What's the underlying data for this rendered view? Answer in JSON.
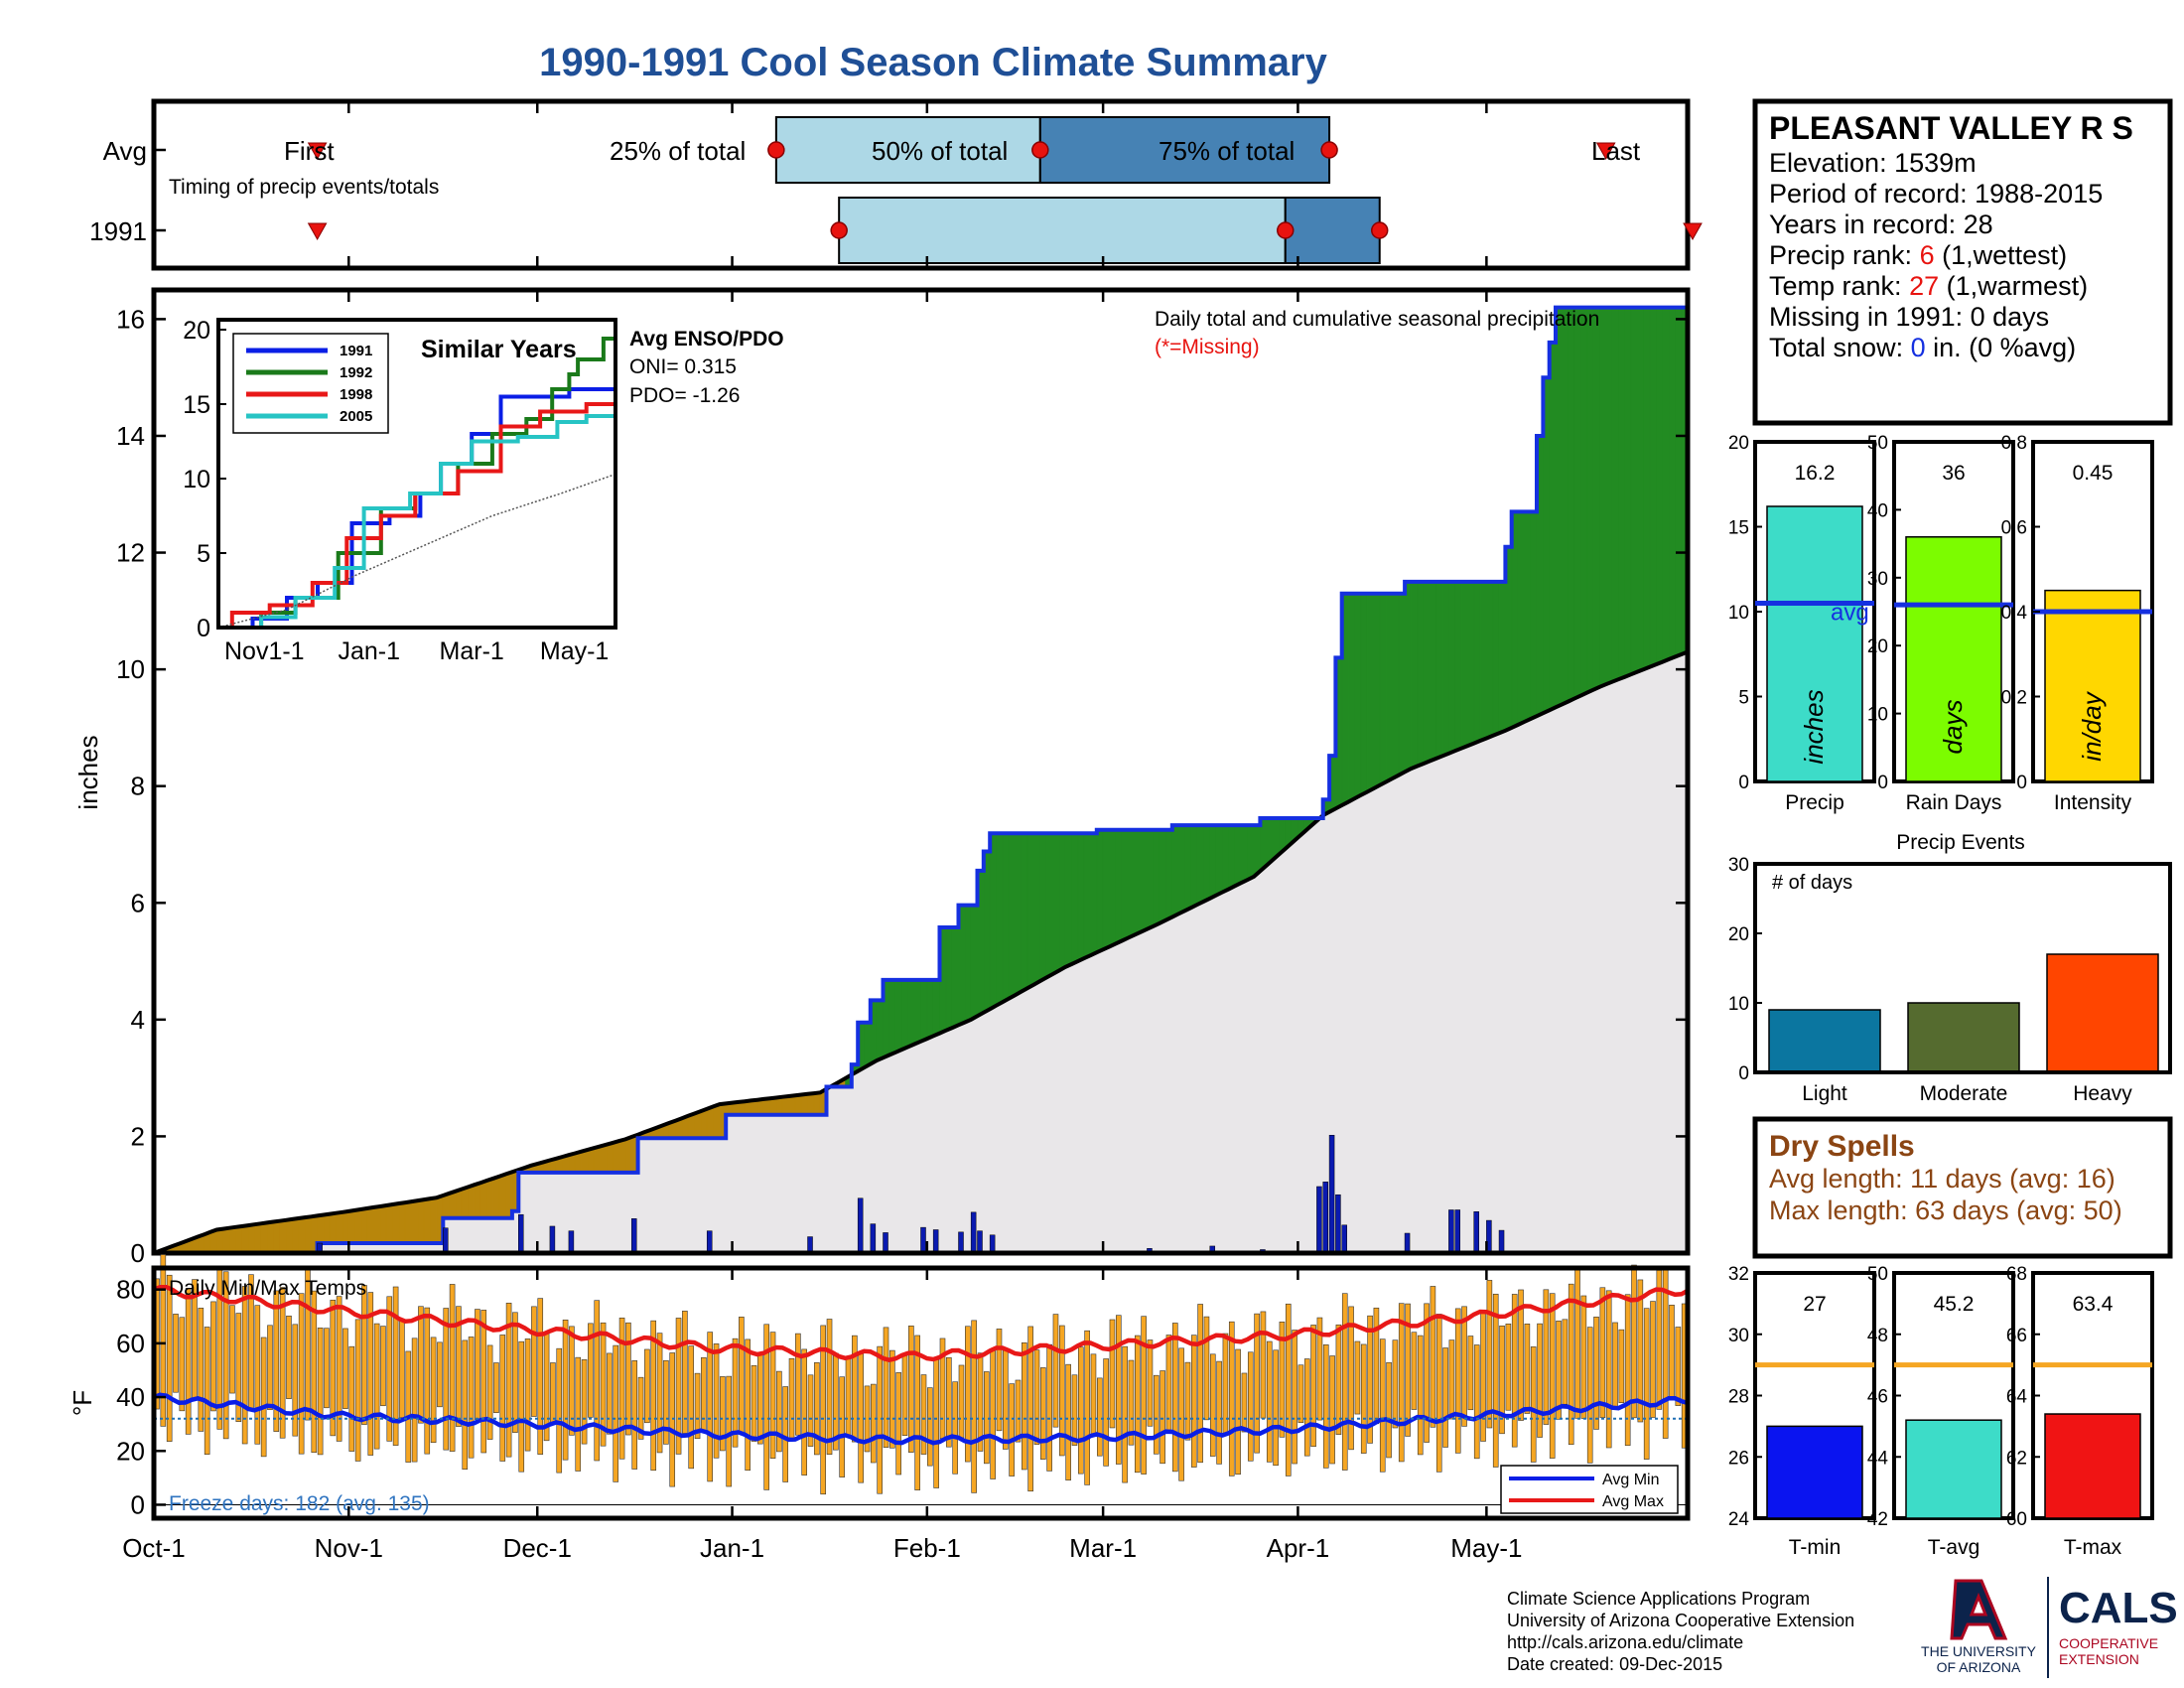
{
  "title": "1990-1991 Cool Season Climate Summary",
  "timing": {
    "row_labels": [
      "Avg",
      "1991"
    ],
    "first_label": "First",
    "last_label": "Last",
    "pct25_label": "25% of total",
    "pct50_label": "50% of total",
    "pct75_label": "75% of total",
    "caption": "Timing of precip events/totals"
  },
  "station": {
    "name": "PLEASANT VALLEY R S",
    "elevation": "Elevation: 1539m",
    "period": "Period of record: 1988-2015",
    "years": "Years in record: 28",
    "precip_rank_label": "Precip rank: ",
    "precip_rank_value": "6",
    "precip_rank_note": " (1,wettest)",
    "temp_rank_label": "Temp rank: ",
    "temp_rank_value": "27",
    "temp_rank_note": " (1,warmest)",
    "missing": "Missing in 1991: 0 days",
    "snow_label": "Total snow: ",
    "snow_value": "0",
    "snow_note": " in. (0 %avg)"
  },
  "main_chart": {
    "ylabel": "inches",
    "annotation": "Daily total and cumulative seasonal precipitation",
    "missing_note": "(*=Missing)",
    "x_ticks": [
      "Oct-1",
      "Nov-1",
      "Dec-1",
      "Jan-1",
      "Feb-1",
      "Mar-1",
      "Apr-1",
      "May-1"
    ],
    "y_ticks": [
      "0",
      "2",
      "4",
      "6",
      "8",
      "10",
      "12",
      "14",
      "16"
    ],
    "enso_title": "Avg ENSO/PDO",
    "oni": "ONI= 0.315",
    "pdo": "PDO= -1.26"
  },
  "inset": {
    "title": "Similar Years",
    "y_ticks": [
      "0",
      "5",
      "10",
      "15",
      "20"
    ],
    "x_ticks": [
      "Nov1-1",
      "Jan-1",
      "Mar-1",
      "May-1"
    ],
    "legend": [
      "1991",
      "1992",
      "1998",
      "2005"
    ]
  },
  "temps": {
    "title": "Daily Min/Max Temps",
    "ylabel": "°F",
    "y_ticks": [
      "0",
      "20",
      "40",
      "60",
      "80"
    ],
    "freeze_note": "Freeze days: 182 (avg. 135)",
    "legend_min": "Avg Min",
    "legend_max": "Avg Max"
  },
  "summary_bars": {
    "panels": [
      {
        "label": "Precip",
        "unit": "inches",
        "value_text": "16.2",
        "ticks": [
          "0",
          "5",
          "10",
          "15",
          "20"
        ],
        "avg_text": "avg"
      },
      {
        "label": "Rain Days",
        "unit": "days",
        "value_text": "36",
        "ticks": [
          "0",
          "10",
          "20",
          "30",
          "40",
          "50"
        ]
      },
      {
        "label": "Intensity",
        "unit": "in/day",
        "value_text": "0.45",
        "ticks": [
          "0",
          "0.2",
          "0.4",
          "0.6",
          "0.8"
        ]
      }
    ]
  },
  "events": {
    "title": "Precip Events",
    "ylabel": "# of days",
    "y_ticks": [
      "0",
      "10",
      "20",
      "30"
    ],
    "categories": [
      "Light",
      "Moderate",
      "Heavy"
    ]
  },
  "dry": {
    "title": "Dry Spells",
    "avg": "Avg length: 11 days (avg: 16)",
    "max": "Max length: 63 days (avg: 50)"
  },
  "temp_bars": {
    "panels": [
      {
        "label": "T-min",
        "value_text": "27",
        "ticks": [
          "24",
          "26",
          "28",
          "30",
          "32"
        ]
      },
      {
        "label": "T-avg",
        "value_text": "45.2",
        "ticks": [
          "42",
          "44",
          "46",
          "48",
          "50"
        ]
      },
      {
        "label": "T-max",
        "value_text": "63.4",
        "ticks": [
          "60",
          "62",
          "64",
          "66",
          "68"
        ]
      }
    ]
  },
  "footer": {
    "line1": "Climate Science Applications Program",
    "line2": "University of Arizona Cooperative Extension",
    "line3": "http://cals.arizona.edu/climate",
    "line4": " Date created: 09-Dec-2015",
    "ua_line1": "THE UNIVERSITY",
    "ua_line2": "OF ARIZONA",
    "cals": "CALS",
    "coop1": "COOPERATIVE",
    "coop2": "EXTENSION"
  },
  "chart_data": [
    {
      "type": "area",
      "x_days_axis": "2Oct-1 to May-31 (244 days)",
      "ylim": [
        0,
        16.5
      ],
      "ylabel": "inches",
      "series": [
        {
          "name": "1991",
          "points": [
            [
              0,
              0
            ],
            [
              25,
              0
            ],
            [
              26,
              0.17
            ],
            [
              45,
              0.17
            ],
            [
              46,
              0.6
            ],
            [
              57,
              0.72
            ],
            [
              58,
              1.38
            ],
            [
              76,
              1.38
            ],
            [
              77,
              1.97
            ],
            [
              90,
              1.97
            ],
            [
              91,
              2.37
            ],
            [
              106,
              2.37
            ],
            [
              107,
              2.85
            ],
            [
              111,
              3.23
            ],
            [
              112,
              3.95
            ],
            [
              114,
              4.33
            ],
            [
              116,
              4.68
            ],
            [
              124,
              4.68
            ],
            [
              125,
              5.58
            ],
            [
              128,
              5.96
            ],
            [
              131,
              6.55
            ],
            [
              132,
              6.88
            ],
            [
              133,
              7.19
            ],
            [
              150,
              7.25
            ],
            [
              162,
              7.33
            ],
            [
              176,
              7.45
            ],
            [
              186,
              7.77
            ],
            [
              187,
              8.52
            ],
            [
              188,
              10.2
            ],
            [
              189,
              11.3
            ],
            [
              198,
              11.3
            ],
            [
              199,
              11.5
            ],
            [
              215,
              12.1
            ],
            [
              216,
              12.7
            ],
            [
              220,
              14.0
            ],
            [
              221,
              15.0
            ],
            [
              222,
              15.6
            ],
            [
              223,
              16.2
            ],
            [
              244,
              16.2
            ]
          ]
        },
        {
          "name": "Average cumulative",
          "points": [
            [
              0,
              0
            ],
            [
              10,
              0.4
            ],
            [
              30,
              0.7
            ],
            [
              45,
              0.95
            ],
            [
              60,
              1.5
            ],
            [
              75,
              1.95
            ],
            [
              90,
              2.55
            ],
            [
              106,
              2.75
            ],
            [
              115,
              3.3
            ],
            [
              130,
              4.0
            ],
            [
              145,
              4.9
            ],
            [
              160,
              5.65
            ],
            [
              175,
              6.45
            ],
            [
              186,
              7.5
            ],
            [
              200,
              8.3
            ],
            [
              215,
              8.95
            ],
            [
              230,
              9.7
            ],
            [
              244,
              10.3
            ]
          ]
        }
      ],
      "daily_precip": [
        [
          26,
          0.17
        ],
        [
          46,
          0.43
        ],
        [
          58,
          0.66
        ],
        [
          63,
          0.46
        ],
        [
          66,
          0.38
        ],
        [
          76,
          0.59
        ],
        [
          88,
          0.38
        ],
        [
          104,
          0.28
        ],
        [
          112,
          0.94
        ],
        [
          114,
          0.5
        ],
        [
          116,
          0.35
        ],
        [
          122,
          0.44
        ],
        [
          124,
          0.4
        ],
        [
          128,
          0.36
        ],
        [
          130,
          0.7
        ],
        [
          131,
          0.38
        ],
        [
          133,
          0.31
        ],
        [
          158,
          0.08
        ],
        [
          168,
          0.12
        ],
        [
          176,
          0.06
        ],
        [
          185,
          1.14
        ],
        [
          186,
          1.22
        ],
        [
          187,
          2.02
        ],
        [
          188,
          1.0
        ],
        [
          189,
          0.48
        ],
        [
          199,
          0.34
        ],
        [
          206,
          0.74
        ],
        [
          207,
          0.74
        ],
        [
          210,
          0.71
        ],
        [
          212,
          0.56
        ],
        [
          214,
          0.39
        ]
      ]
    },
    {
      "type": "line",
      "title": "Similar Years",
      "ylim": [
        0,
        20
      ],
      "x_ticks": [
        "Nov1-1",
        "Jan-1",
        "Mar-1",
        "May-1"
      ],
      "series": [
        {
          "name": "1991",
          "points": [
            [
              0,
              0
            ],
            [
              20,
              0.6
            ],
            [
              40,
              2
            ],
            [
              58,
              3
            ],
            [
              78,
              7
            ],
            [
              100,
              7.5
            ],
            [
              118,
              9
            ],
            [
              130,
              11
            ],
            [
              148,
              13
            ],
            [
              165,
              15.5
            ],
            [
              188,
              15.5
            ],
            [
              205,
              16
            ],
            [
              232,
              16
            ]
          ]
        },
        {
          "name": "1992",
          "points": [
            [
              0,
              0
            ],
            [
              25,
              1
            ],
            [
              45,
              2
            ],
            [
              70,
              5
            ],
            [
              95,
              8
            ],
            [
              115,
              9
            ],
            [
              140,
              11
            ],
            [
              160,
              13
            ],
            [
              180,
              14
            ],
            [
              195,
              16
            ],
            [
              205,
              17
            ],
            [
              210,
              18
            ],
            [
              225,
              19.4
            ],
            [
              232,
              20
            ]
          ]
        },
        {
          "name": "1998",
          "points": [
            [
              0,
              0
            ],
            [
              8,
              1
            ],
            [
              30,
              1.5
            ],
            [
              55,
              3
            ],
            [
              75,
              6
            ],
            [
              95,
              7.5
            ],
            [
              115,
              9
            ],
            [
              140,
              10.5
            ],
            [
              165,
              13.5
            ],
            [
              188,
              14.5
            ],
            [
              215,
              15
            ],
            [
              232,
              15
            ]
          ]
        },
        {
          "name": "2005",
          "points": [
            [
              0,
              0
            ],
            [
              25,
              0.7
            ],
            [
              45,
              2
            ],
            [
              68,
              4
            ],
            [
              85,
              8
            ],
            [
              112,
              9
            ],
            [
              130,
              11
            ],
            [
              148,
              12.5
            ],
            [
              175,
              12.8
            ],
            [
              198,
              13.8
            ],
            [
              215,
              14.2
            ],
            [
              232,
              14.2
            ]
          ]
        },
        {
          "name": "Average",
          "points": [
            [
              0,
              0
            ],
            [
              40,
              1.2
            ],
            [
              80,
              3.5
            ],
            [
              120,
              5.5
            ],
            [
              160,
              7.5
            ],
            [
              200,
              9
            ],
            [
              232,
              10.3
            ]
          ]
        }
      ]
    },
    {
      "type": "bar",
      "categories": [
        "Precip",
        "Rain Days",
        "Intensity"
      ],
      "values": [
        16.2,
        36,
        0.45
      ],
      "averages": [
        10.5,
        26,
        0.4
      ],
      "ylims": [
        [
          0,
          20
        ],
        [
          0,
          50
        ],
        [
          0,
          0.8
        ]
      ]
    },
    {
      "type": "bar",
      "title": "Precip Events",
      "categories": [
        "Light",
        "Moderate",
        "Heavy"
      ],
      "values": [
        9,
        10,
        17
      ],
      "ylim": [
        0,
        30
      ]
    },
    {
      "type": "bar",
      "categories": [
        "T-min",
        "T-avg",
        "T-max"
      ],
      "values": [
        27,
        45.2,
        63.4
      ],
      "averages": [
        29,
        47,
        65
      ],
      "ylims": [
        [
          24,
          32
        ],
        [
          42,
          50
        ],
        [
          60,
          68
        ]
      ]
    },
    {
      "type": "bar",
      "title": "Daily Min/Max Temps",
      "ylim": [
        -5,
        88
      ],
      "avg_max_points": [
        [
          0,
          80
        ],
        [
          30,
          72
        ],
        [
          60,
          65
        ],
        [
          90,
          58
        ],
        [
          120,
          55
        ],
        [
          150,
          59
        ],
        [
          180,
          63
        ],
        [
          210,
          70
        ],
        [
          244,
          80
        ]
      ],
      "avg_min_points": [
        [
          0,
          40
        ],
        [
          30,
          33
        ],
        [
          60,
          30
        ],
        [
          90,
          26
        ],
        [
          120,
          24
        ],
        [
          150,
          25
        ],
        [
          180,
          28
        ],
        [
          210,
          33
        ],
        [
          244,
          39
        ]
      ],
      "freeze_line": 32
    },
    {
      "type": "line",
      "title": "Timing of precip events/totals",
      "rows": [
        {
          "name": "Avg",
          "first": 26,
          "p25": 99,
          "p50": 141,
          "p75": 187,
          "last": 231
        },
        {
          "name": "1991",
          "first": 26,
          "p25": 109,
          "p50": 180,
          "p75": 195,
          "last": 248
        }
      ]
    }
  ]
}
